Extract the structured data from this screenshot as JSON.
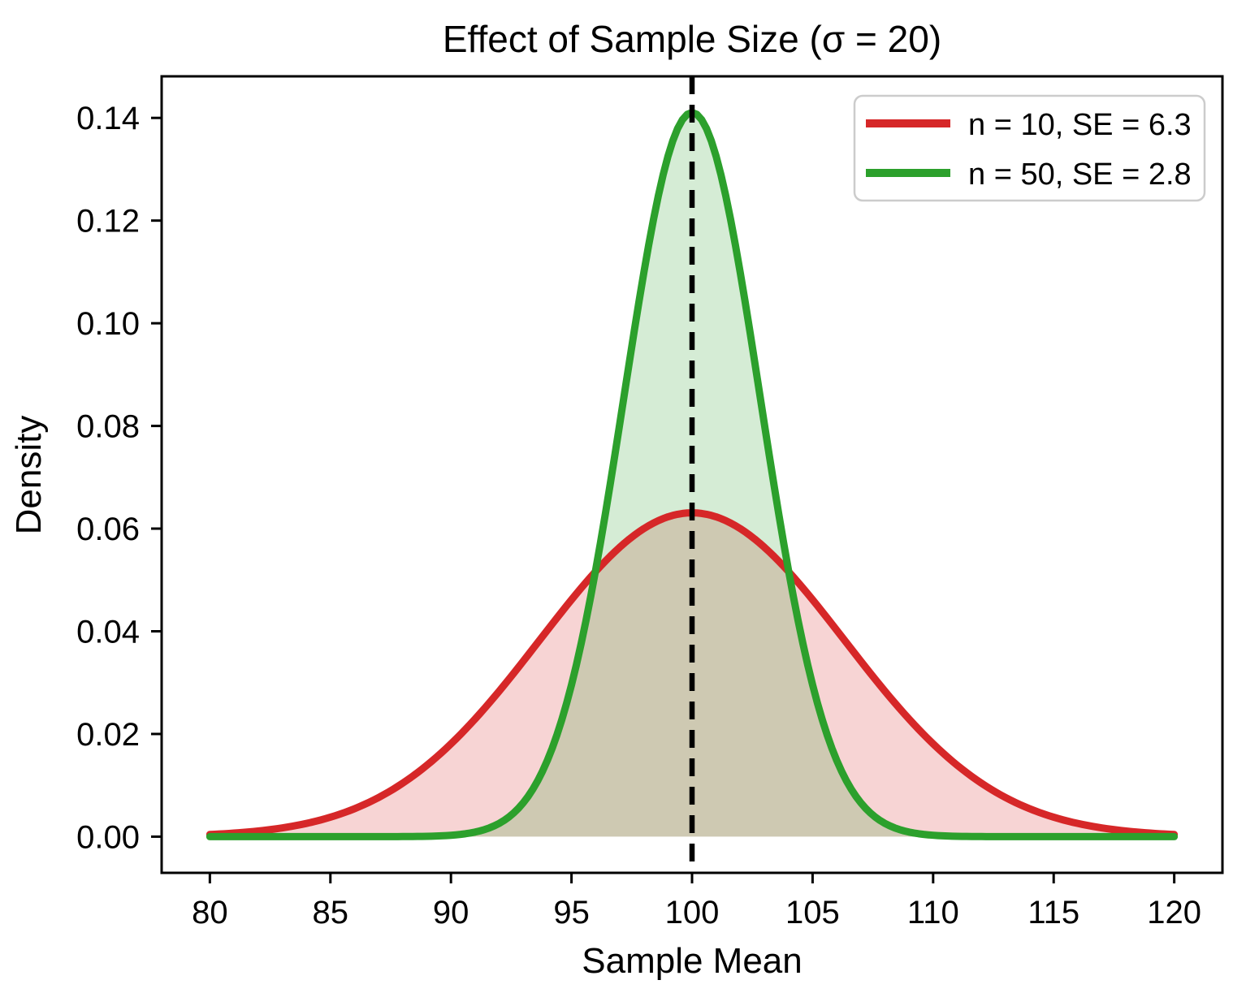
{
  "chart_data": {
    "type": "line",
    "title": "Effect of Sample Size (σ = 20)",
    "xlabel": "Sample Mean",
    "ylabel": "Density",
    "xlim": [
      78,
      122
    ],
    "ylim": [
      -0.00705,
      0.1481
    ],
    "x_ticks": [
      80,
      85,
      90,
      95,
      100,
      105,
      110,
      115,
      120
    ],
    "x_tick_labels": [
      "80",
      "85",
      "90",
      "95",
      "100",
      "105",
      "110",
      "115",
      "120"
    ],
    "y_ticks": [
      0.0,
      0.02,
      0.04,
      0.06,
      0.08,
      0.1,
      0.12,
      0.14
    ],
    "y_tick_labels": [
      "0.00",
      "0.02",
      "0.04",
      "0.06",
      "0.08",
      "0.10",
      "0.12",
      "0.14"
    ],
    "grid": false,
    "population_sigma": 20,
    "vline": {
      "x": 100,
      "style": "dashed",
      "color": "#000000"
    },
    "series": [
      {
        "name": "n = 10, SE = 6.3",
        "distribution": "normal",
        "mean": 100,
        "sd": 6.3246,
        "peak_density": 0.063,
        "x_range": [
          80,
          120
        ],
        "color": "#d62728",
        "fill_alpha": 0.2
      },
      {
        "name": "n = 50, SE = 2.8",
        "distribution": "normal",
        "mean": 100,
        "sd": 2.8284,
        "peak_density": 0.141,
        "x_range": [
          80,
          120
        ],
        "color": "#2ca02c",
        "fill_alpha": 0.2
      }
    ],
    "legend": {
      "position": "upper right",
      "entries": [
        {
          "label": "n = 10, SE = 6.3",
          "color": "#d62728"
        },
        {
          "label": "n = 50, SE = 2.8",
          "color": "#2ca02c"
        }
      ]
    }
  },
  "colors": {
    "spine": "#000000",
    "legend_border": "#cccccc",
    "legend_background": "#ffffff"
  }
}
